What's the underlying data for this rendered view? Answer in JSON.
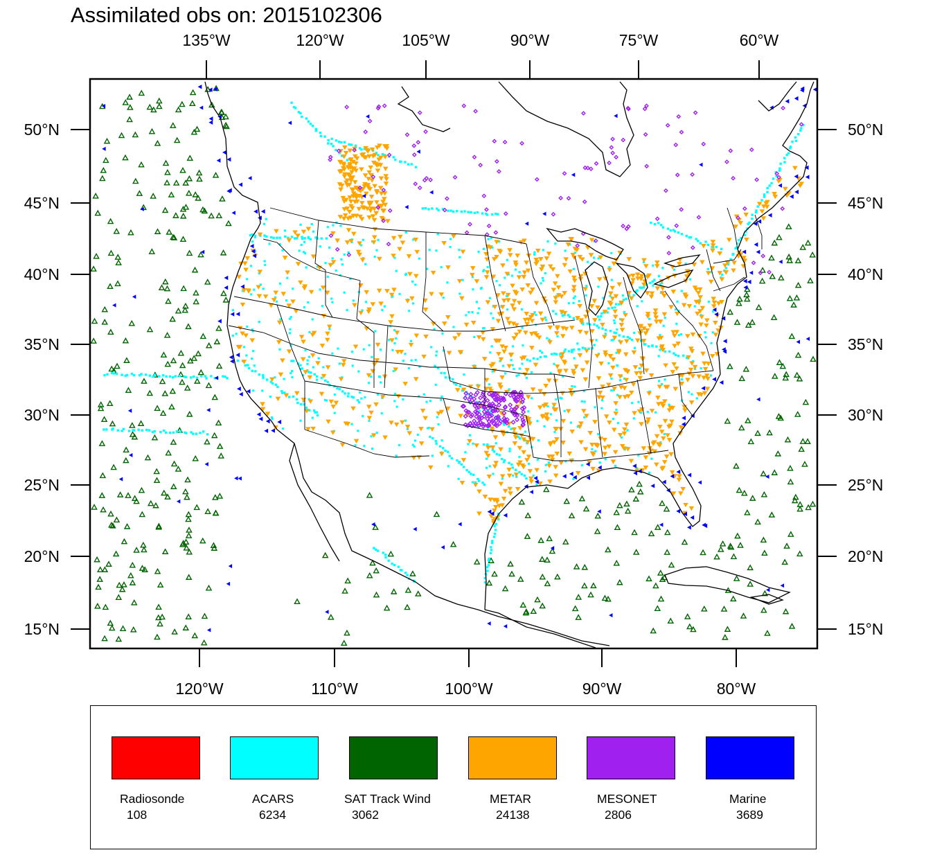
{
  "title": "Assimilated obs on: 2015102306",
  "axes": {
    "top_lon_labels": [
      "135°W",
      "120°W",
      "105°W",
      "90°W",
      "75°W",
      "60°W"
    ],
    "bottom_lon_labels": [
      "120°W",
      "110°W",
      "100°W",
      "90°W",
      "80°W"
    ],
    "left_lat_labels": [
      "50°N",
      "45°N",
      "40°N",
      "35°N",
      "30°N",
      "25°N",
      "20°N",
      "15°N"
    ],
    "right_lat_labels": [
      "50°N",
      "45°N",
      "40°N",
      "35°N",
      "30°N",
      "25°N",
      "20°N",
      "15°N"
    ]
  },
  "colors": {
    "Radiosonde": "#ff0000",
    "ACARS": "#00ffff",
    "SAT Track Wind": "#006400",
    "METAR": "#ffa500",
    "MESONET": "#a020f0",
    "Marine": "#0000ff"
  },
  "legend": [
    {
      "name": "Radiosonde",
      "count": "108",
      "color": "#ff0000"
    },
    {
      "name": "ACARS",
      "count": "6234",
      "color": "#00ffff"
    },
    {
      "name": "SAT Track Wind",
      "count": "3062",
      "color": "#006400"
    },
    {
      "name": "METAR",
      "count": "24138",
      "color": "#ffa500"
    },
    {
      "name": "MESONET",
      "count": "2806",
      "color": "#a020f0"
    },
    {
      "name": "Marine",
      "count": "3689",
      "color": "#0000ff"
    }
  ]
}
